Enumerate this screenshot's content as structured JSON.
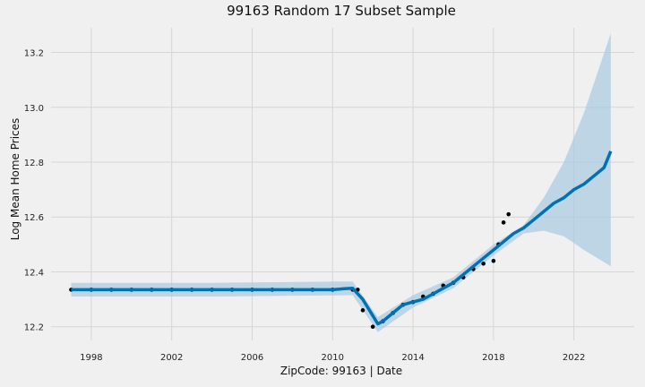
{
  "chart_data": {
    "type": "line",
    "title": "99163 Random 17 Subset Sample",
    "xlabel": "ZipCode: 99163 | Date",
    "ylabel": "Log Mean Home Prices",
    "xlim": [
      "1996-01",
      "2025-01"
    ],
    "ylim": [
      12.15,
      13.29
    ],
    "x_ticks": [
      "1998",
      "2002",
      "2006",
      "2010",
      "2014",
      "2018",
      "2022"
    ],
    "y_ticks": [
      "12.2",
      "12.4",
      "12.6",
      "12.8",
      "13.0",
      "13.2"
    ],
    "grid": true,
    "colors": {
      "forecast": "#0072B2",
      "band": "#a7c9e0",
      "observed": "#000000",
      "background": "#f0f0f0",
      "grid": "#d6d6d6"
    },
    "series": [
      {
        "role": "forecast",
        "x": [
          "1997-01",
          "1998-01",
          "1999-01",
          "2000-01",
          "2001-01",
          "2002-01",
          "2003-01",
          "2004-01",
          "2005-01",
          "2006-01",
          "2007-01",
          "2008-01",
          "2009-01",
          "2010-01",
          "2010-07",
          "2011-01",
          "2011-07",
          "2012-01",
          "2012-04",
          "2012-07",
          "2013-01",
          "2013-07",
          "2014-01",
          "2014-07",
          "2015-01",
          "2015-07",
          "2016-01",
          "2016-07",
          "2017-01",
          "2017-07",
          "2018-01",
          "2018-07",
          "2019-01",
          "2019-07",
          "2020-01",
          "2020-07",
          "2021-01",
          "2021-07",
          "2022-01",
          "2022-07",
          "2023-01",
          "2023-07",
          "2023-11"
        ],
        "y": [
          12.335,
          12.335,
          12.335,
          12.335,
          12.335,
          12.335,
          12.335,
          12.335,
          12.335,
          12.335,
          12.335,
          12.335,
          12.335,
          12.335,
          12.338,
          12.34,
          12.3,
          12.24,
          12.21,
          12.22,
          12.25,
          12.28,
          12.29,
          12.3,
          12.32,
          12.34,
          12.36,
          12.39,
          12.42,
          12.45,
          12.48,
          12.51,
          12.54,
          12.56,
          12.59,
          12.62,
          12.65,
          12.67,
          12.7,
          12.72,
          12.75,
          12.78,
          12.84
        ]
      },
      {
        "role": "uncertainty-band",
        "x": [
          "1997-01",
          "2004-01",
          "2011-01",
          "2012-04",
          "2014-01",
          "2016-01",
          "2018-01",
          "2019-07",
          "2020-07",
          "2021-07",
          "2022-07",
          "2023-11"
        ],
        "lower": [
          12.31,
          12.31,
          12.315,
          12.18,
          12.27,
          12.34,
          12.46,
          12.54,
          12.55,
          12.53,
          12.48,
          12.42
        ],
        "upper": [
          12.36,
          12.36,
          12.365,
          12.235,
          12.315,
          12.38,
          12.5,
          12.57,
          12.67,
          12.8,
          12.98,
          13.27
        ]
      },
      {
        "role": "observed",
        "x": [
          "1997-01",
          "1998-01",
          "1999-01",
          "2000-01",
          "2001-01",
          "2002-01",
          "2003-01",
          "2004-01",
          "2005-01",
          "2006-01",
          "2007-01",
          "2008-01",
          "2009-01",
          "2010-01",
          "2011-01",
          "2011-04",
          "2011-07",
          "2012-01",
          "2012-07",
          "2013-01",
          "2013-07",
          "2014-01",
          "2014-07",
          "2015-01",
          "2015-07",
          "2016-01",
          "2016-07",
          "2017-01",
          "2017-07",
          "2018-01",
          "2018-04",
          "2018-07",
          "2018-10"
        ],
        "y": [
          12.335,
          12.335,
          12.335,
          12.335,
          12.335,
          12.335,
          12.335,
          12.335,
          12.335,
          12.335,
          12.335,
          12.335,
          12.335,
          12.335,
          12.335,
          12.335,
          12.26,
          12.2,
          12.22,
          12.25,
          12.28,
          12.29,
          12.31,
          12.32,
          12.35,
          12.36,
          12.38,
          12.41,
          12.43,
          12.44,
          12.5,
          12.58,
          12.61
        ]
      }
    ]
  }
}
